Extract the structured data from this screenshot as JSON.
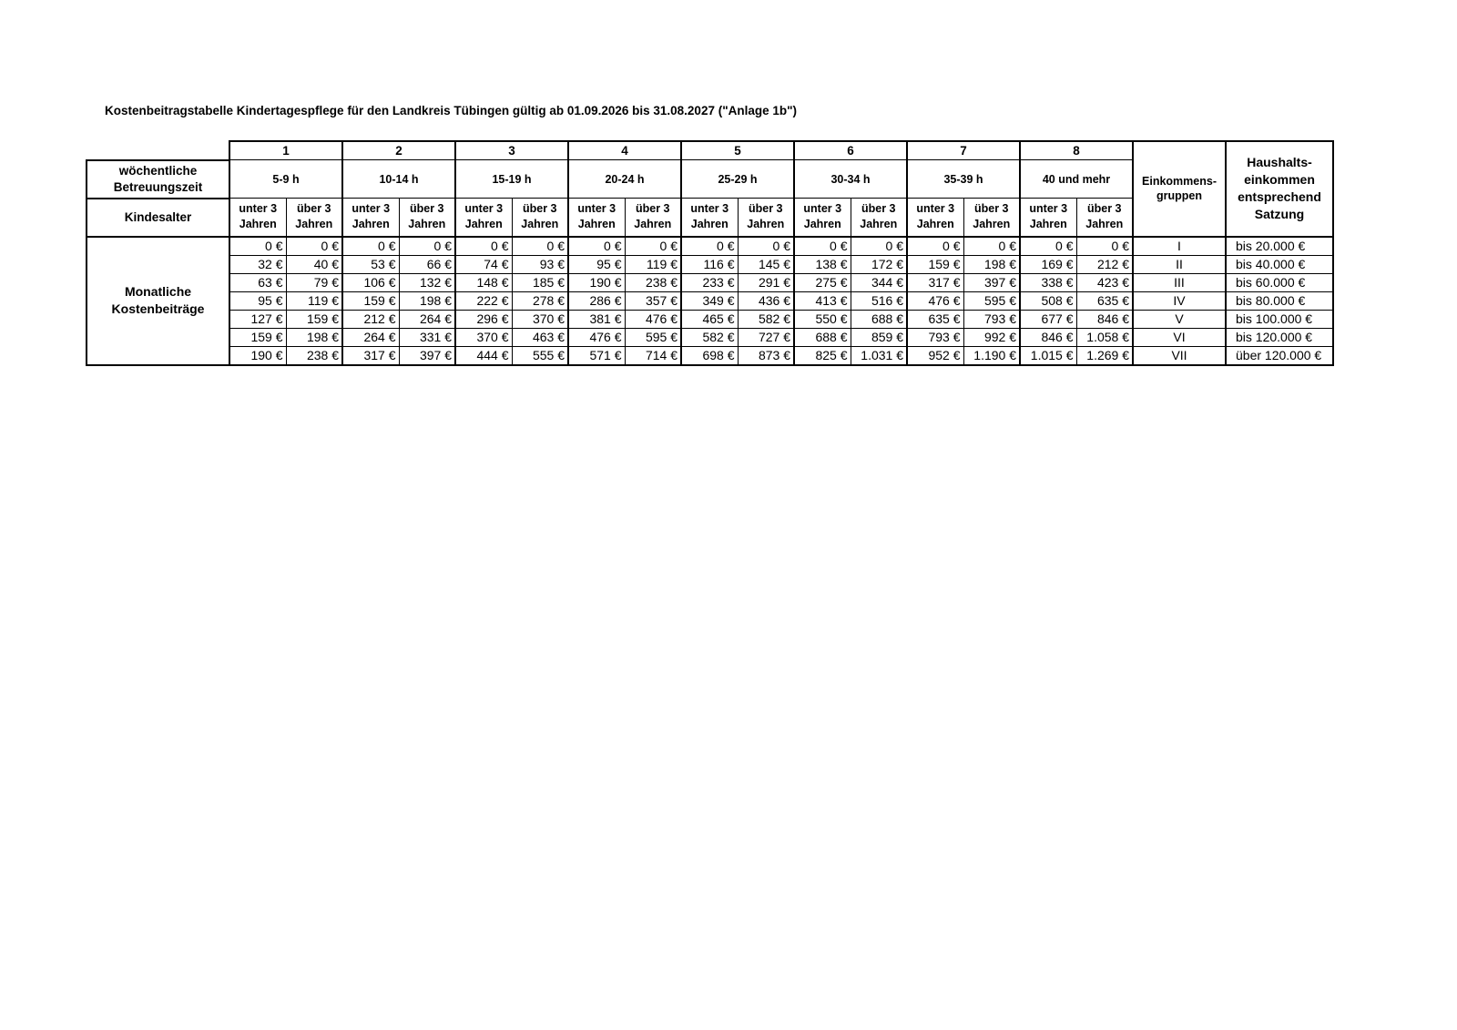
{
  "title": "Kostenbeitragstabelle Kindertagespflege für den Landkreis Tübingen gültig ab 01.09.2026 bis 31.08.2027 (\"Anlage 1b\")",
  "table": {
    "row_label_weekly": "wöchentliche Betreuungszeit",
    "row_label_age": "Kindesalter",
    "row_label_fees": "Monatliche Kostenbeiträge",
    "col_groups": [
      {
        "number": "1",
        "hours": "5-9 h"
      },
      {
        "number": "2",
        "hours": "10-14 h"
      },
      {
        "number": "3",
        "hours": "15-19 h"
      },
      {
        "number": "4",
        "hours": "20-24 h"
      },
      {
        "number": "5",
        "hours": "25-29 h"
      },
      {
        "number": "6",
        "hours": "30-34 h"
      },
      {
        "number": "7",
        "hours": "35-39 h"
      },
      {
        "number": "8",
        "hours": "40 und mehr"
      }
    ],
    "age_under": "unter 3 Jahren",
    "age_over": "über 3 Jahren",
    "income_group_header": "Einkommens-gruppen",
    "income_header": "Haushalts-einkommen entsprechend Satzung",
    "rows": [
      {
        "values": [
          "0 €",
          "0 €",
          "0 €",
          "0 €",
          "0 €",
          "0 €",
          "0 €",
          "0 €",
          "0 €",
          "0 €",
          "0 €",
          "0 €",
          "0 €",
          "0 €",
          "0 €",
          "0 €"
        ],
        "group": "I",
        "income": "bis 20.000 €"
      },
      {
        "values": [
          "32 €",
          "40 €",
          "53 €",
          "66 €",
          "74 €",
          "93 €",
          "95 €",
          "119 €",
          "116 €",
          "145 €",
          "138 €",
          "172 €",
          "159 €",
          "198 €",
          "169 €",
          "212 €"
        ],
        "group": "II",
        "income": "bis 40.000 €"
      },
      {
        "values": [
          "63 €",
          "79 €",
          "106 €",
          "132 €",
          "148 €",
          "185 €",
          "190 €",
          "238 €",
          "233 €",
          "291 €",
          "275 €",
          "344 €",
          "317 €",
          "397 €",
          "338 €",
          "423 €"
        ],
        "group": "III",
        "income": "bis 60.000 €"
      },
      {
        "values": [
          "95 €",
          "119 €",
          "159 €",
          "198 €",
          "222 €",
          "278 €",
          "286 €",
          "357 €",
          "349 €",
          "436 €",
          "413 €",
          "516 €",
          "476 €",
          "595 €",
          "508 €",
          "635 €"
        ],
        "group": "IV",
        "income": "bis 80.000 €"
      },
      {
        "values": [
          "127 €",
          "159 €",
          "212 €",
          "264 €",
          "296 €",
          "370 €",
          "381 €",
          "476 €",
          "465 €",
          "582 €",
          "550 €",
          "688 €",
          "635 €",
          "793 €",
          "677 €",
          "846 €"
        ],
        "group": "V",
        "income": "bis 100.000 €"
      },
      {
        "values": [
          "159 €",
          "198 €",
          "264 €",
          "331 €",
          "370 €",
          "463 €",
          "476 €",
          "595 €",
          "582 €",
          "727 €",
          "688 €",
          "859 €",
          "793 €",
          "992 €",
          "846 €",
          "1.058 €"
        ],
        "group": "VI",
        "income": "bis 120.000 €"
      },
      {
        "values": [
          "190 €",
          "238 €",
          "317 €",
          "397 €",
          "444 €",
          "555 €",
          "571 €",
          "714 €",
          "698 €",
          "873 €",
          "825 €",
          "1.031 €",
          "952 €",
          "1.190 €",
          "1.015 €",
          "1.269 €"
        ],
        "group": "VII",
        "income": "über 120.000 €"
      }
    ]
  }
}
